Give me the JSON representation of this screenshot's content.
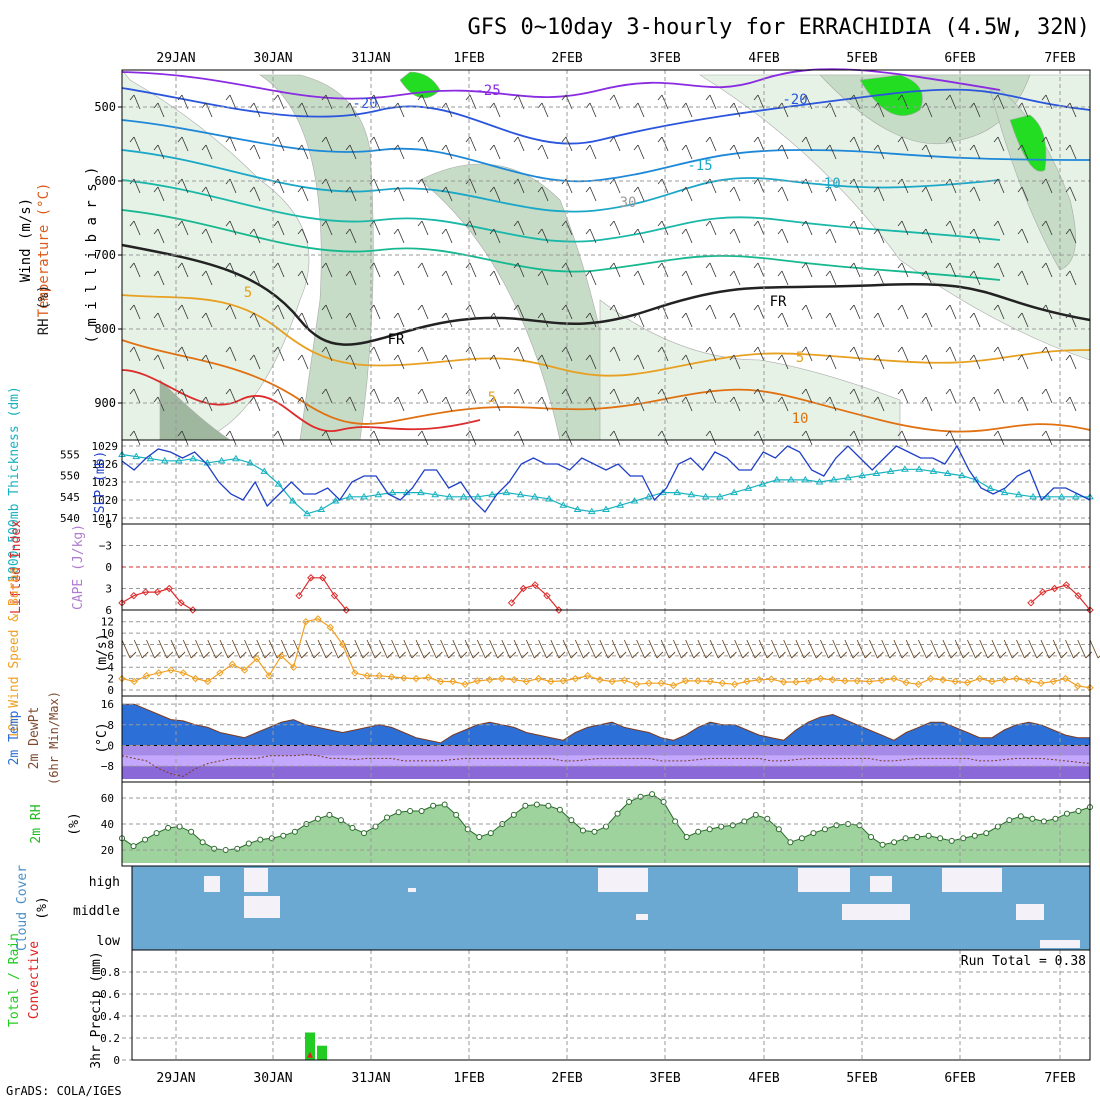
{
  "title": "GFS 0~10day 3-hourly for ERRACHIDIA (4.5W, 32N)",
  "footer": "GrADS: COLA/IGES",
  "date_labels": [
    "29JAN",
    "30JAN",
    "31JAN",
    "1FEB",
    "2FEB",
    "3FEB",
    "4FEB",
    "5FEB",
    "6FEB",
    "7FEB"
  ],
  "colors": {
    "grid": "#9a9a9a",
    "rh_light": "#e6f2e6",
    "rh_mid": "#c6dcc6",
    "rh_dark": "#9fb79f",
    "rh_bright": "#22dd22",
    "slp": "#1f3fc8",
    "thickness": "#18b2c0",
    "lifted": "#dd2b2b",
    "wind_speed": "#f0a020",
    "barb": "#6b4a2a",
    "temp_fill": "#2c6fd6",
    "dewpt": "#c0a0ff",
    "rh2m": "#22bb22",
    "cloud": "#6ba9d3",
    "cloud_clear": "#f4f2f8",
    "precip_total": "#22cc22",
    "precip_conv": "#dd2222"
  },
  "chart_data": [
    {
      "type": "contour",
      "panel": "upper_air",
      "ylabel_parts": [
        "RH (%)",
        "Temperature (°C)",
        "Wind (m/s)"
      ],
      "yunit": "( m i l l i b a r s )",
      "yticks": [
        500,
        600,
        700,
        800,
        900
      ],
      "ylim": [
        950,
        450
      ],
      "x_dates": [
        "29JAN",
        "30JAN",
        "31JAN",
        "1FEB",
        "2FEB",
        "3FEB",
        "4FEB",
        "5FEB",
        "6FEB",
        "7FEB"
      ],
      "isotherm_labels": [
        "-25",
        "-20",
        "-20",
        "-15",
        "-10",
        "5",
        "5",
        "5",
        "10",
        "30",
        "FR",
        "FR"
      ]
    },
    {
      "type": "line",
      "panel": "slp_thickness",
      "ylabel_left": "1000-500mb Thickness (dm)",
      "ylabel_right": "SLP (mb)",
      "yticks_left": [
        540,
        545,
        550,
        555
      ],
      "yticks_right": [
        1017,
        1020,
        1023,
        1026,
        1029
      ],
      "series": [
        {
          "name": "SLP (mb)",
          "values": [
            1026.5,
            1025,
            1027,
            1028.5,
            1028,
            1027,
            1028,
            1026,
            1023,
            1021,
            1020,
            1023,
            1019,
            1021,
            1023,
            1021,
            1021,
            1022,
            1020,
            1023,
            1024,
            1024,
            1021,
            1020,
            1022,
            1025,
            1025,
            1022,
            1023,
            1020,
            1018,
            1021,
            1023,
            1026,
            1027,
            1026,
            1026,
            1025,
            1027,
            1026,
            1025,
            1026,
            1024,
            1024,
            1020,
            1022,
            1026,
            1027,
            1025,
            1028,
            1027,
            1025,
            1025,
            1028,
            1027,
            1029,
            1028,
            1025,
            1024,
            1027,
            1029,
            1027,
            1025,
            1027,
            1029,
            1028,
            1027,
            1027,
            1026,
            1029,
            1025,
            1022,
            1021,
            1022,
            1024,
            1025,
            1020,
            1022,
            1022,
            1021,
            1020
          ]
        },
        {
          "name": "Thickness (dm)",
          "values": [
            555,
            554.5,
            554,
            553.5,
            553.5,
            554,
            553,
            553.5,
            554,
            553,
            551,
            548,
            544,
            541,
            542,
            544,
            545,
            545,
            545.5,
            546,
            546,
            546,
            545.5,
            545,
            545,
            545,
            545.5,
            546,
            545.5,
            545,
            544.5,
            543,
            542,
            541.5,
            542,
            543,
            544,
            545,
            546,
            546,
            545.5,
            545,
            545,
            546,
            547,
            548,
            549,
            549,
            549,
            548.5,
            549,
            549.5,
            550,
            550.5,
            551,
            551.5,
            551.5,
            551,
            550.5,
            550,
            549,
            547,
            546,
            545.5,
            545,
            545,
            545,
            545,
            545
          ]
        }
      ]
    },
    {
      "type": "line",
      "panel": "lifted_index",
      "ylabel_left": "Lifted Index",
      "ylabel_right": "CAPE (J/kg)",
      "yticks": [
        -6,
        -3,
        0,
        3,
        6
      ],
      "ylim": [
        6,
        -6
      ],
      "series": [
        {
          "name": "Lifted Index",
          "values": [
            5,
            4,
            3.5,
            3.5,
            3,
            5,
            6,
            null,
            null,
            null,
            null,
            null,
            null,
            null,
            null,
            4,
            1.5,
            1.5,
            4,
            6,
            null,
            null,
            null,
            null,
            null,
            null,
            null,
            null,
            null,
            null,
            null,
            null,
            null,
            5,
            3,
            2.5,
            4,
            6,
            null,
            null,
            null,
            null,
            null,
            null,
            null,
            null,
            null,
            null,
            null,
            null,
            null,
            null,
            null,
            null,
            null,
            null,
            null,
            null,
            null,
            null,
            null,
            null,
            null,
            null,
            null,
            null,
            null,
            null,
            null,
            null,
            null,
            null,
            null,
            null,
            null,
            null,
            null,
            5,
            3.5,
            3,
            2.5,
            4,
            6
          ]
        }
      ]
    },
    {
      "type": "line",
      "panel": "wind10m",
      "ylabel_left": "10m Wind Speed & Barbs",
      "yunit": "(m/s)",
      "yticks": [
        0,
        2,
        4,
        6,
        8,
        10,
        12
      ],
      "ylim": [
        0,
        13
      ],
      "series": [
        {
          "name": "10m Wind Speed",
          "values": [
            2,
            1.5,
            2.5,
            3,
            3.5,
            3,
            2,
            1.5,
            3,
            4.5,
            3.5,
            5.5,
            2.5,
            6,
            4,
            12,
            12.5,
            11,
            8,
            3,
            2.5,
            2.5,
            2.3,
            2.1,
            2,
            2.2,
            1.5,
            1.5,
            1,
            1.6,
            1.8,
            2,
            1.8,
            1.5,
            2,
            1.5,
            1.6,
            2,
            2.5,
            1.8,
            1.5,
            1.7,
            1,
            1.2,
            1.2,
            0.8,
            1.6,
            1.6,
            1.5,
            1.2,
            1,
            1.5,
            1.8,
            1.9,
            1.4,
            1.4,
            1.6,
            2,
            1.8,
            1.6,
            1.6,
            1.5,
            1.7,
            2,
            1.3,
            1,
            2,
            1.8,
            1.5,
            1.3,
            2,
            1.5,
            1.8,
            2,
            1.6,
            1.2,
            1.5,
            2,
            0.7,
            0.4
          ]
        }
      ]
    },
    {
      "type": "area",
      "panel": "temp2m",
      "ylabel_parts": [
        "2m Temp",
        "2m DewPt",
        "(6hr Min/Max)"
      ],
      "yunit": "(°C)",
      "yticks": [
        -8,
        0,
        8,
        16
      ],
      "ylim": [
        -13,
        18
      ],
      "series": [
        {
          "name": "2m Temp",
          "values": [
            16,
            16,
            14,
            12,
            10,
            9.5,
            8,
            7,
            5,
            4,
            3,
            5,
            7,
            9,
            10,
            8,
            7,
            6,
            5,
            6,
            7,
            8,
            7,
            5,
            3,
            2,
            1,
            4,
            6,
            8,
            9,
            8,
            7,
            5,
            4,
            3,
            2,
            5,
            7,
            8,
            9,
            7,
            6,
            5,
            3,
            2,
            4,
            7,
            9,
            8,
            8,
            6,
            4,
            3,
            2,
            6,
            9,
            11,
            12,
            10,
            8,
            6,
            4,
            2,
            5,
            7,
            9,
            9,
            7,
            5,
            3,
            3,
            6,
            8,
            9,
            8,
            6,
            4,
            3,
            3
          ]
        },
        {
          "name": "2m DewPt",
          "values": [
            -4,
            -5,
            -6,
            -9,
            -11,
            -12,
            -9,
            -7,
            -6,
            -5,
            -5,
            -5,
            -4,
            -4,
            -4,
            -3.5,
            -4,
            -5,
            -5,
            -5.5,
            -5,
            -5,
            -5,
            -6,
            -6,
            -6,
            -6,
            -5.5,
            -5,
            -5,
            -5,
            -5,
            -5,
            -5,
            -5,
            -5,
            -6,
            -6,
            -5.5,
            -5,
            -5,
            -5,
            -5,
            -5,
            -6,
            -6,
            -6,
            -5.5,
            -5,
            -5,
            -5,
            -5,
            -5,
            -6,
            -6,
            -5.5,
            -5,
            -5,
            -5,
            -5,
            -5,
            -5,
            -6,
            -6,
            -5.5,
            -5,
            -5,
            -5,
            -5,
            -5,
            -6,
            -6,
            -5.5,
            -5,
            -5,
            -5,
            -5.5,
            -6,
            -6.5,
            -7
          ]
        }
      ]
    },
    {
      "type": "area",
      "panel": "rh2m",
      "ylabel": "2m RH",
      "yunit": "(%)",
      "yticks": [
        20,
        40,
        60
      ],
      "ylim": [
        10,
        70
      ],
      "series": [
        {
          "name": "2m RH",
          "values": [
            29,
            23,
            28,
            33,
            37,
            38,
            34,
            26,
            21,
            20,
            21,
            25,
            28,
            29,
            31,
            34,
            40,
            44,
            47,
            43,
            37,
            33,
            38,
            45,
            49,
            50,
            50,
            54,
            55,
            47,
            36,
            30,
            33,
            40,
            47,
            54,
            55,
            54,
            51,
            43,
            35,
            34,
            38,
            48,
            57,
            61,
            63,
            57,
            42,
            30,
            34,
            36,
            38,
            39,
            42,
            47,
            44,
            36,
            26,
            29,
            33,
            36,
            39,
            40,
            39,
            30,
            24,
            26,
            29,
            30,
            31,
            29,
            27,
            29,
            31,
            33,
            38,
            43,
            46,
            44,
            42,
            44,
            48,
            50,
            53
          ]
        }
      ]
    },
    {
      "type": "heatmap",
      "panel": "cloud_cover",
      "ylabel": "Cloud Cover",
      "yunit": "(%)",
      "levels": [
        "high",
        "middle",
        "low"
      ]
    },
    {
      "type": "bar",
      "panel": "precip",
      "ylabel_left": "Total / Rain",
      "ylabel_left2": "Convective",
      "ylabel": "3hr Precip",
      "yunit": "(mm)",
      "yticks": [
        0,
        0.2,
        0.4,
        0.6,
        0.8
      ],
      "ylim": [
        0,
        1
      ],
      "run_total_label": "Run Total = 0.38",
      "series": [
        {
          "name": "Total / Rain",
          "values": [
            0.25,
            0.13
          ]
        },
        {
          "name": "Convective",
          "values": [
            0.02,
            0
          ]
        }
      ]
    }
  ]
}
